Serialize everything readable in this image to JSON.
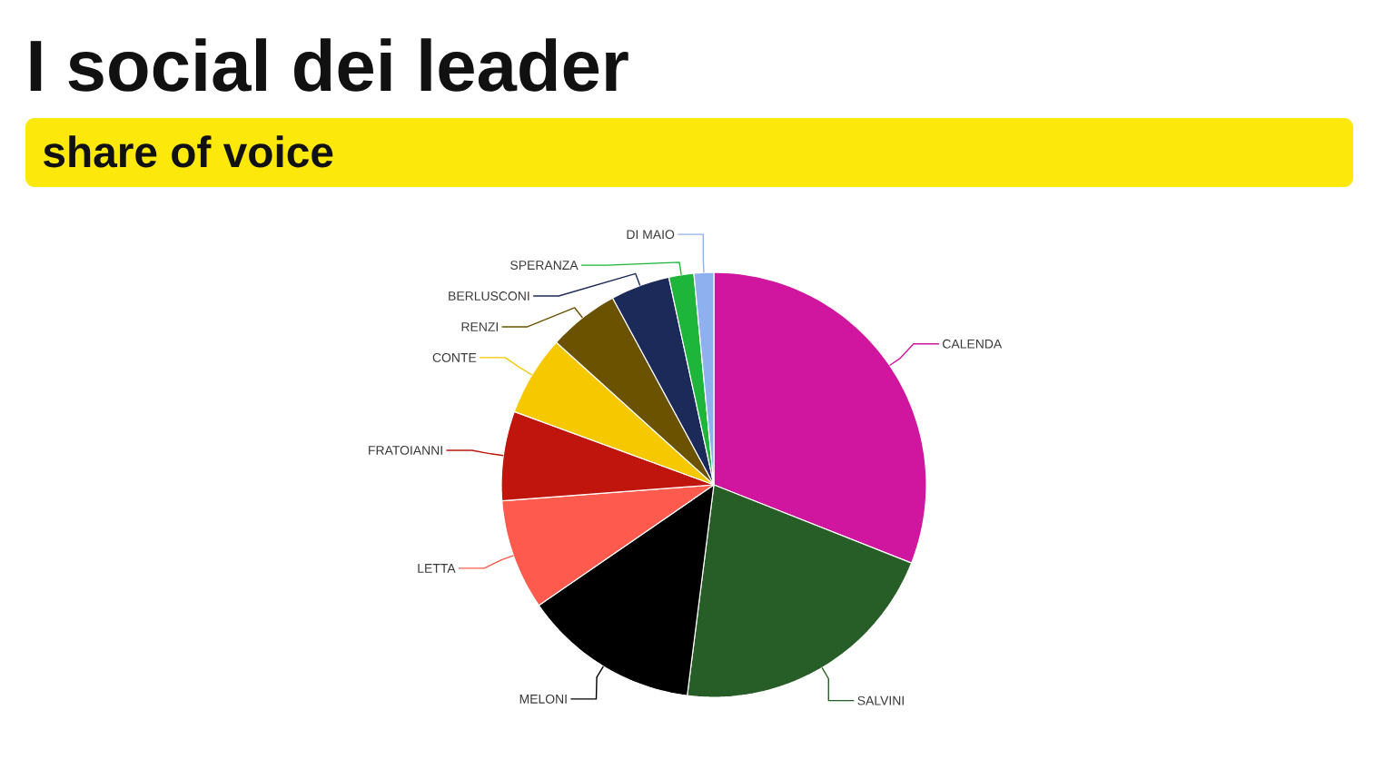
{
  "chart_data": {
    "type": "pie",
    "title": "I social dei leader",
    "subtitle": "share of voice",
    "categories": [
      "CALENDA",
      "SALVINI",
      "MELONI",
      "LETTA",
      "FRATOIANNI",
      "CONTE",
      "RENZI",
      "BERLUSCONI",
      "SPERANZA",
      "DI MAIO"
    ],
    "values": [
      31.0,
      21.0,
      13.4,
      8.4,
      6.8,
      6.1,
      5.4,
      4.5,
      1.9,
      1.5
    ],
    "colors": [
      "#d0169f",
      "#275e27",
      "#000000",
      "#ff5a4e",
      "#c0150c",
      "#f5c800",
      "#6b5200",
      "#1c2a5a",
      "#1db53a",
      "#8fb0ef"
    ]
  }
}
